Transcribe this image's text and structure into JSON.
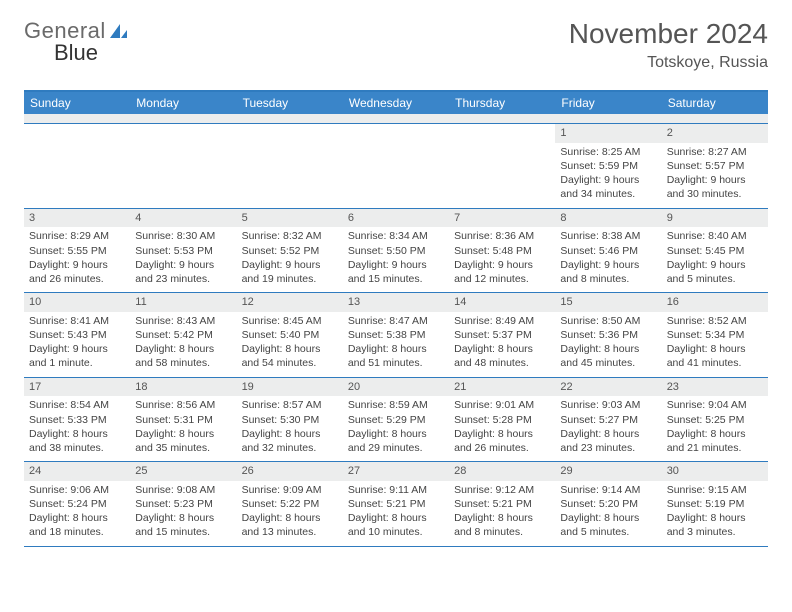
{
  "logo": {
    "word1": "General",
    "word2": "Blue"
  },
  "title": "November 2024",
  "location": "Totskoye, Russia",
  "header_bg": "#3a85c9",
  "border_color": "#2f7bbf",
  "datebar_bg": "#eceded",
  "days": [
    "Sunday",
    "Monday",
    "Tuesday",
    "Wednesday",
    "Thursday",
    "Friday",
    "Saturday"
  ],
  "weeks": [
    [
      null,
      null,
      null,
      null,
      null,
      {
        "d": "1",
        "sr": "8:25 AM",
        "ss": "5:59 PM",
        "dl": "9 hours and 34 minutes."
      },
      {
        "d": "2",
        "sr": "8:27 AM",
        "ss": "5:57 PM",
        "dl": "9 hours and 30 minutes."
      }
    ],
    [
      {
        "d": "3",
        "sr": "8:29 AM",
        "ss": "5:55 PM",
        "dl": "9 hours and 26 minutes."
      },
      {
        "d": "4",
        "sr": "8:30 AM",
        "ss": "5:53 PM",
        "dl": "9 hours and 23 minutes."
      },
      {
        "d": "5",
        "sr": "8:32 AM",
        "ss": "5:52 PM",
        "dl": "9 hours and 19 minutes."
      },
      {
        "d": "6",
        "sr": "8:34 AM",
        "ss": "5:50 PM",
        "dl": "9 hours and 15 minutes."
      },
      {
        "d": "7",
        "sr": "8:36 AM",
        "ss": "5:48 PM",
        "dl": "9 hours and 12 minutes."
      },
      {
        "d": "8",
        "sr": "8:38 AM",
        "ss": "5:46 PM",
        "dl": "9 hours and 8 minutes."
      },
      {
        "d": "9",
        "sr": "8:40 AM",
        "ss": "5:45 PM",
        "dl": "9 hours and 5 minutes."
      }
    ],
    [
      {
        "d": "10",
        "sr": "8:41 AM",
        "ss": "5:43 PM",
        "dl": "9 hours and 1 minute."
      },
      {
        "d": "11",
        "sr": "8:43 AM",
        "ss": "5:42 PM",
        "dl": "8 hours and 58 minutes."
      },
      {
        "d": "12",
        "sr": "8:45 AM",
        "ss": "5:40 PM",
        "dl": "8 hours and 54 minutes."
      },
      {
        "d": "13",
        "sr": "8:47 AM",
        "ss": "5:38 PM",
        "dl": "8 hours and 51 minutes."
      },
      {
        "d": "14",
        "sr": "8:49 AM",
        "ss": "5:37 PM",
        "dl": "8 hours and 48 minutes."
      },
      {
        "d": "15",
        "sr": "8:50 AM",
        "ss": "5:36 PM",
        "dl": "8 hours and 45 minutes."
      },
      {
        "d": "16",
        "sr": "8:52 AM",
        "ss": "5:34 PM",
        "dl": "8 hours and 41 minutes."
      }
    ],
    [
      {
        "d": "17",
        "sr": "8:54 AM",
        "ss": "5:33 PM",
        "dl": "8 hours and 38 minutes."
      },
      {
        "d": "18",
        "sr": "8:56 AM",
        "ss": "5:31 PM",
        "dl": "8 hours and 35 minutes."
      },
      {
        "d": "19",
        "sr": "8:57 AM",
        "ss": "5:30 PM",
        "dl": "8 hours and 32 minutes."
      },
      {
        "d": "20",
        "sr": "8:59 AM",
        "ss": "5:29 PM",
        "dl": "8 hours and 29 minutes."
      },
      {
        "d": "21",
        "sr": "9:01 AM",
        "ss": "5:28 PM",
        "dl": "8 hours and 26 minutes."
      },
      {
        "d": "22",
        "sr": "9:03 AM",
        "ss": "5:27 PM",
        "dl": "8 hours and 23 minutes."
      },
      {
        "d": "23",
        "sr": "9:04 AM",
        "ss": "5:25 PM",
        "dl": "8 hours and 21 minutes."
      }
    ],
    [
      {
        "d": "24",
        "sr": "9:06 AM",
        "ss": "5:24 PM",
        "dl": "8 hours and 18 minutes."
      },
      {
        "d": "25",
        "sr": "9:08 AM",
        "ss": "5:23 PM",
        "dl": "8 hours and 15 minutes."
      },
      {
        "d": "26",
        "sr": "9:09 AM",
        "ss": "5:22 PM",
        "dl": "8 hours and 13 minutes."
      },
      {
        "d": "27",
        "sr": "9:11 AM",
        "ss": "5:21 PM",
        "dl": "8 hours and 10 minutes."
      },
      {
        "d": "28",
        "sr": "9:12 AM",
        "ss": "5:21 PM",
        "dl": "8 hours and 8 minutes."
      },
      {
        "d": "29",
        "sr": "9:14 AM",
        "ss": "5:20 PM",
        "dl": "8 hours and 5 minutes."
      },
      {
        "d": "30",
        "sr": "9:15 AM",
        "ss": "5:19 PM",
        "dl": "8 hours and 3 minutes."
      }
    ]
  ],
  "labels": {
    "sunrise": "Sunrise: ",
    "sunset": "Sunset: ",
    "daylight": "Daylight: "
  }
}
